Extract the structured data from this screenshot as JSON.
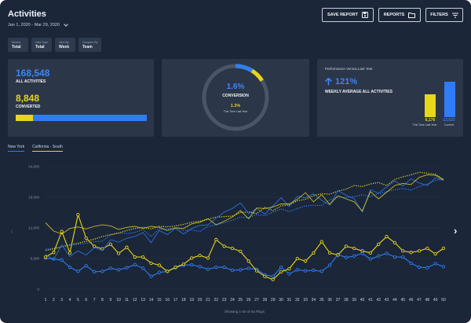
{
  "header": {
    "title": "Activities",
    "date_range": "Jan 1, 2020 - Mar 29, 2020",
    "buttons": {
      "save_report": "SAVE REPORT",
      "reports": "REPORTS",
      "filters": "FILTERS"
    }
  },
  "filters": [
    {
      "label": "Metrics",
      "value": "Total"
    },
    {
      "label": "Data Type",
      "value": "Total"
    },
    {
      "label": "View By",
      "value": "Week"
    },
    {
      "label": "Compare By",
      "value": "Team"
    }
  ],
  "card_activities": {
    "activities_value": "168,548",
    "activities_label": "ALL ACTIVITIES",
    "converted_value": "8,848",
    "converted_label": "CONVERTED",
    "progress_fraction": 0.13
  },
  "card_conversion": {
    "percent": "1.6%",
    "label": "CONVERSION",
    "last_year_percent": "1.3%",
    "last_year_label": "This Time Last Year",
    "ring_fraction": 0.16
  },
  "card_performance": {
    "heading": "Performance Versus Last Year",
    "change": "121%",
    "label": "WEEKLY AVERAGE ALL ACTIVITIES",
    "last_year_value": "6,176",
    "last_year_label": "This Time Last Year",
    "current_value": "13,623",
    "current_label": "Current"
  },
  "colors": {
    "background": "#1b2638",
    "card": "#2b3648",
    "blue": "#2f7df6",
    "yellow": "#e8d61a"
  },
  "chart_data": {
    "type": "line",
    "legend": [
      "New York",
      "California - South"
    ],
    "x": [
      1,
      2,
      3,
      4,
      5,
      6,
      7,
      8,
      9,
      10,
      11,
      12,
      13,
      14,
      15,
      16,
      17,
      18,
      19,
      20,
      21,
      22,
      23,
      24,
      25,
      26,
      27,
      28,
      29,
      30,
      31,
      32,
      33,
      34,
      35,
      36,
      37,
      38,
      39,
      40,
      41,
      42,
      43,
      44,
      45,
      46,
      47,
      48,
      49,
      50
    ],
    "ytick_labels": [
      "0",
      "6,000",
      "12,000",
      "18,000",
      "24,000"
    ],
    "ylim": [
      0,
      24000
    ],
    "footer": "Showing 1-50 of 64 Plays",
    "series": [
      {
        "name": "New York",
        "style": "solid-markers",
        "color": "#2f7df6",
        "values": [
          6100,
          5900,
          5700,
          4300,
          3500,
          4600,
          3400,
          3500,
          4100,
          3800,
          4200,
          4800,
          4100,
          2500,
          3300,
          3500,
          4200,
          4700,
          4800,
          4400,
          3900,
          4300,
          4300,
          3700,
          3800,
          4100,
          3900,
          2800,
          2500,
          4300,
          3000,
          3800,
          3600,
          3700,
          3500,
          4700,
          6800,
          6200,
          6500,
          7000,
          5900,
          6500,
          7000,
          6300,
          6300,
          5100,
          4300,
          4200,
          5000,
          4400
        ]
      },
      {
        "name": "California - South",
        "style": "solid-markers",
        "color": "#e8d61a",
        "values": [
          6300,
          7200,
          11300,
          7100,
          14600,
          10000,
          8400,
          7900,
          8800,
          7000,
          8200,
          6300,
          6300,
          5100,
          4700,
          3500,
          4300,
          4900,
          6100,
          6600,
          6100,
          9700,
          8400,
          8000,
          7400,
          5500,
          3600,
          2500,
          1900,
          3400,
          4000,
          6000,
          5500,
          7100,
          9300,
          7100,
          6700,
          8400,
          8000,
          7500,
          7100,
          8800,
          10300,
          9100,
          7500,
          7200,
          7500,
          8000,
          6900,
          8000
        ]
      },
      {
        "name": "New York",
        "style": "dotted",
        "color": "#2f7df6",
        "values": [
          7800,
          8000,
          8300,
          8600,
          8800,
          9000,
          9300,
          9400,
          10600,
          11000,
          10900,
          11100,
          11700,
          10300,
          11800,
          11700,
          12100,
          11500,
          11600,
          11300,
          12300,
          12600,
          13000,
          13500,
          14100,
          14000,
          14600,
          14400,
          15100,
          15700,
          15200,
          15800,
          16300,
          16400,
          16400,
          17500,
          18000,
          18000,
          18100,
          18500,
          18200,
          18700,
          19100,
          19500,
          19700,
          19400,
          20100,
          20600,
          21300,
          21500
        ]
      },
      {
        "name": "California - South",
        "style": "dotted",
        "color": "#e8d61a",
        "values": [
          7600,
          7900,
          8300,
          8700,
          9000,
          9400,
          9800,
          10300,
          10700,
          11000,
          11500,
          11900,
          12100,
          11800,
          12300,
          12200,
          12400,
          12700,
          13100,
          13300,
          13700,
          14100,
          14200,
          14300,
          15000,
          15100,
          14800,
          16000,
          15400,
          16300,
          16500,
          17300,
          17600,
          18300,
          18700,
          18600,
          19200,
          19600,
          20300,
          20100,
          20600,
          20900,
          20300,
          21500,
          22000,
          22400,
          22900,
          22700,
          22500,
          21500
        ]
      },
      {
        "name": "New York",
        "style": "thin",
        "color": "#2f7df6",
        "values": [
          6800,
          5800,
          8700,
          6400,
          7500,
          6700,
          8100,
          7600,
          9700,
          9200,
          10000,
          10300,
          11100,
          9100,
          11500,
          10700,
          11900,
          10800,
          11900,
          12500,
          12600,
          13900,
          15100,
          15800,
          16900,
          14800,
          15800,
          14700,
          16300,
          17900,
          16200,
          18200,
          17900,
          18700,
          17400,
          16500,
          19300,
          18400,
          17700,
          15100,
          19500,
          18800,
          20000,
          21200,
          20200,
          21600,
          20800,
          20300,
          21800,
          21300
        ]
      },
      {
        "name": "California - South",
        "style": "thin",
        "color": "#e8d61a",
        "values": [
          13000,
          11400,
          10800,
          11900,
          12200,
          11800,
          12300,
          12600,
          12400,
          11700,
          12100,
          12300,
          11900,
          12300,
          12100,
          11500,
          12000,
          11900,
          12800,
          13100,
          13800,
          12600,
          13300,
          14100,
          15400,
          13800,
          15900,
          15800,
          16100,
          16700,
          16700,
          17600,
          18900,
          17100,
          18500,
          16600,
          18300,
          17700,
          17100,
          15300,
          19100,
          17700,
          19000,
          20300,
          20700,
          20500,
          21900,
          22400,
          22300,
          21400
        ]
      }
    ]
  }
}
